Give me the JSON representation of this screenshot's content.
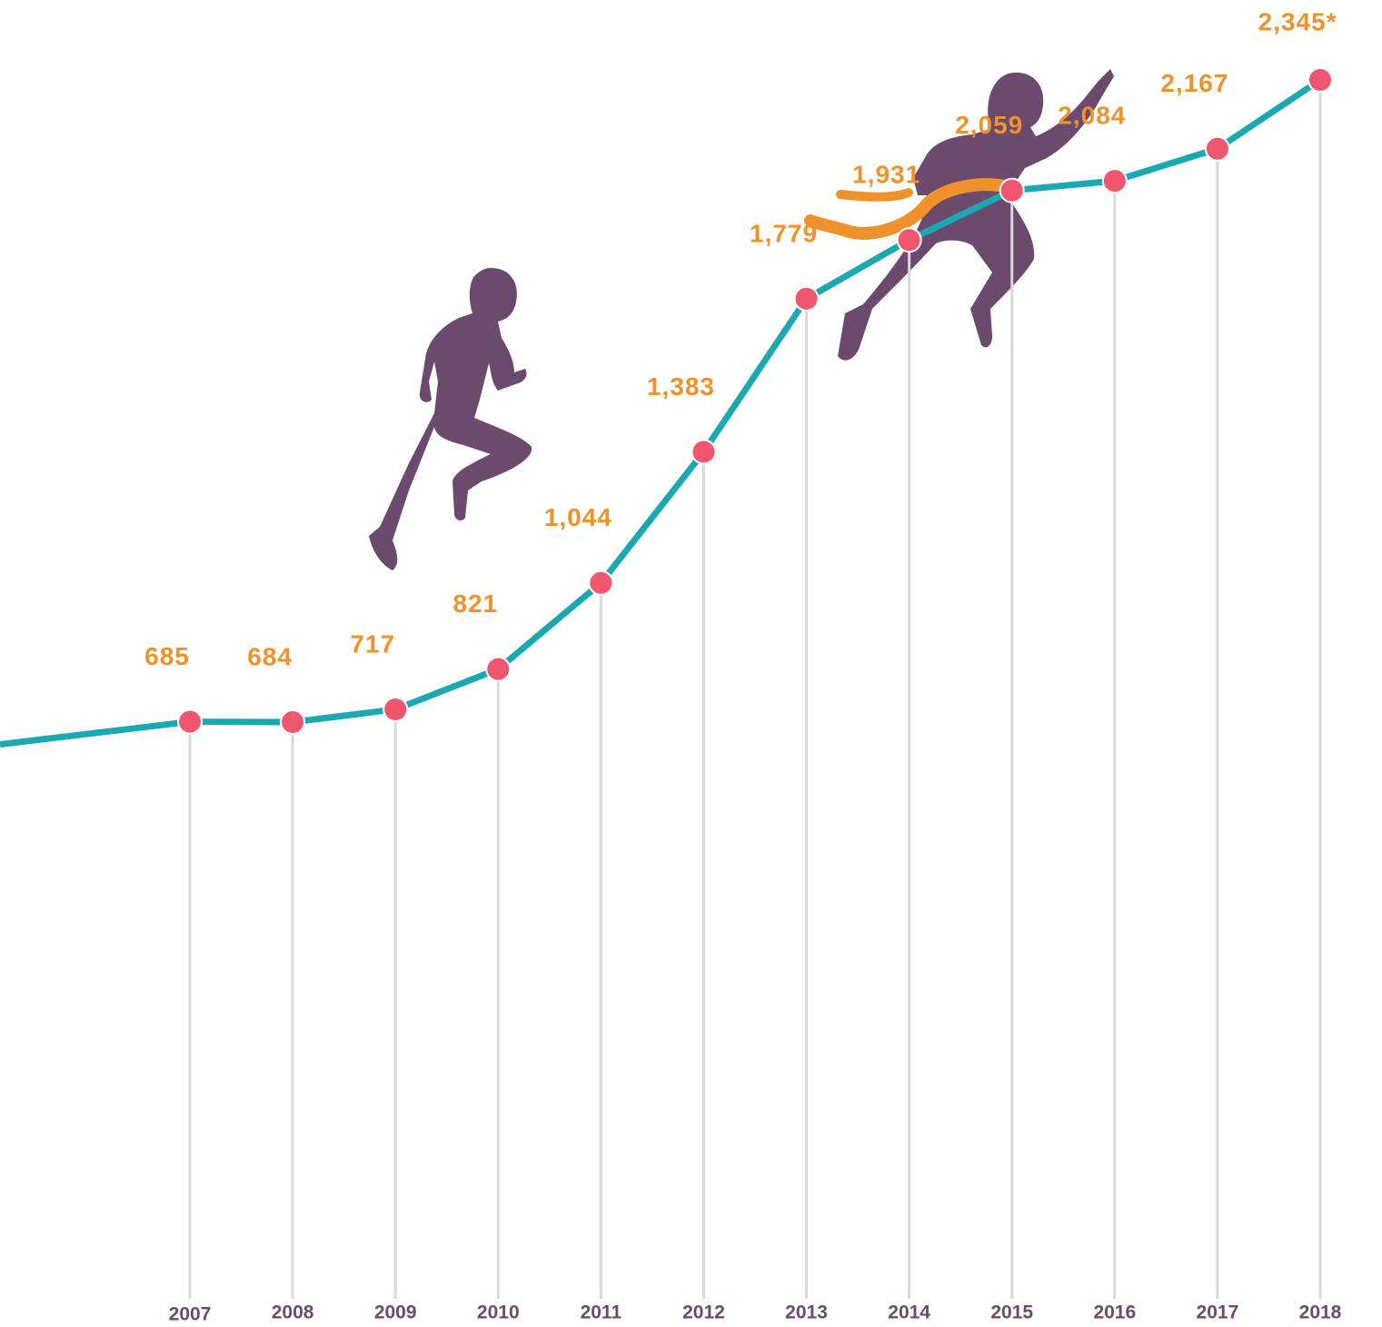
{
  "chart_data": {
    "type": "line",
    "categories": [
      "2007",
      "2008",
      "2009",
      "2010",
      "2011",
      "2012",
      "2013",
      "2014",
      "2015",
      "2016",
      "2017",
      "2018"
    ],
    "values": [
      685,
      684,
      717,
      821,
      1044,
      1383,
      1779,
      1931,
      2059,
      2084,
      2167,
      2345
    ],
    "value_labels": [
      "685",
      "684",
      "717",
      "821",
      "1,044",
      "1,383",
      "1,779",
      "1,931",
      "2,059",
      "2,084",
      "2,167",
      "2,345*"
    ],
    "color": "#1aa9b3",
    "marker_color": "#f0566e",
    "label_color": "#f0922b",
    "category_color": "#6b4a6e"
  }
}
